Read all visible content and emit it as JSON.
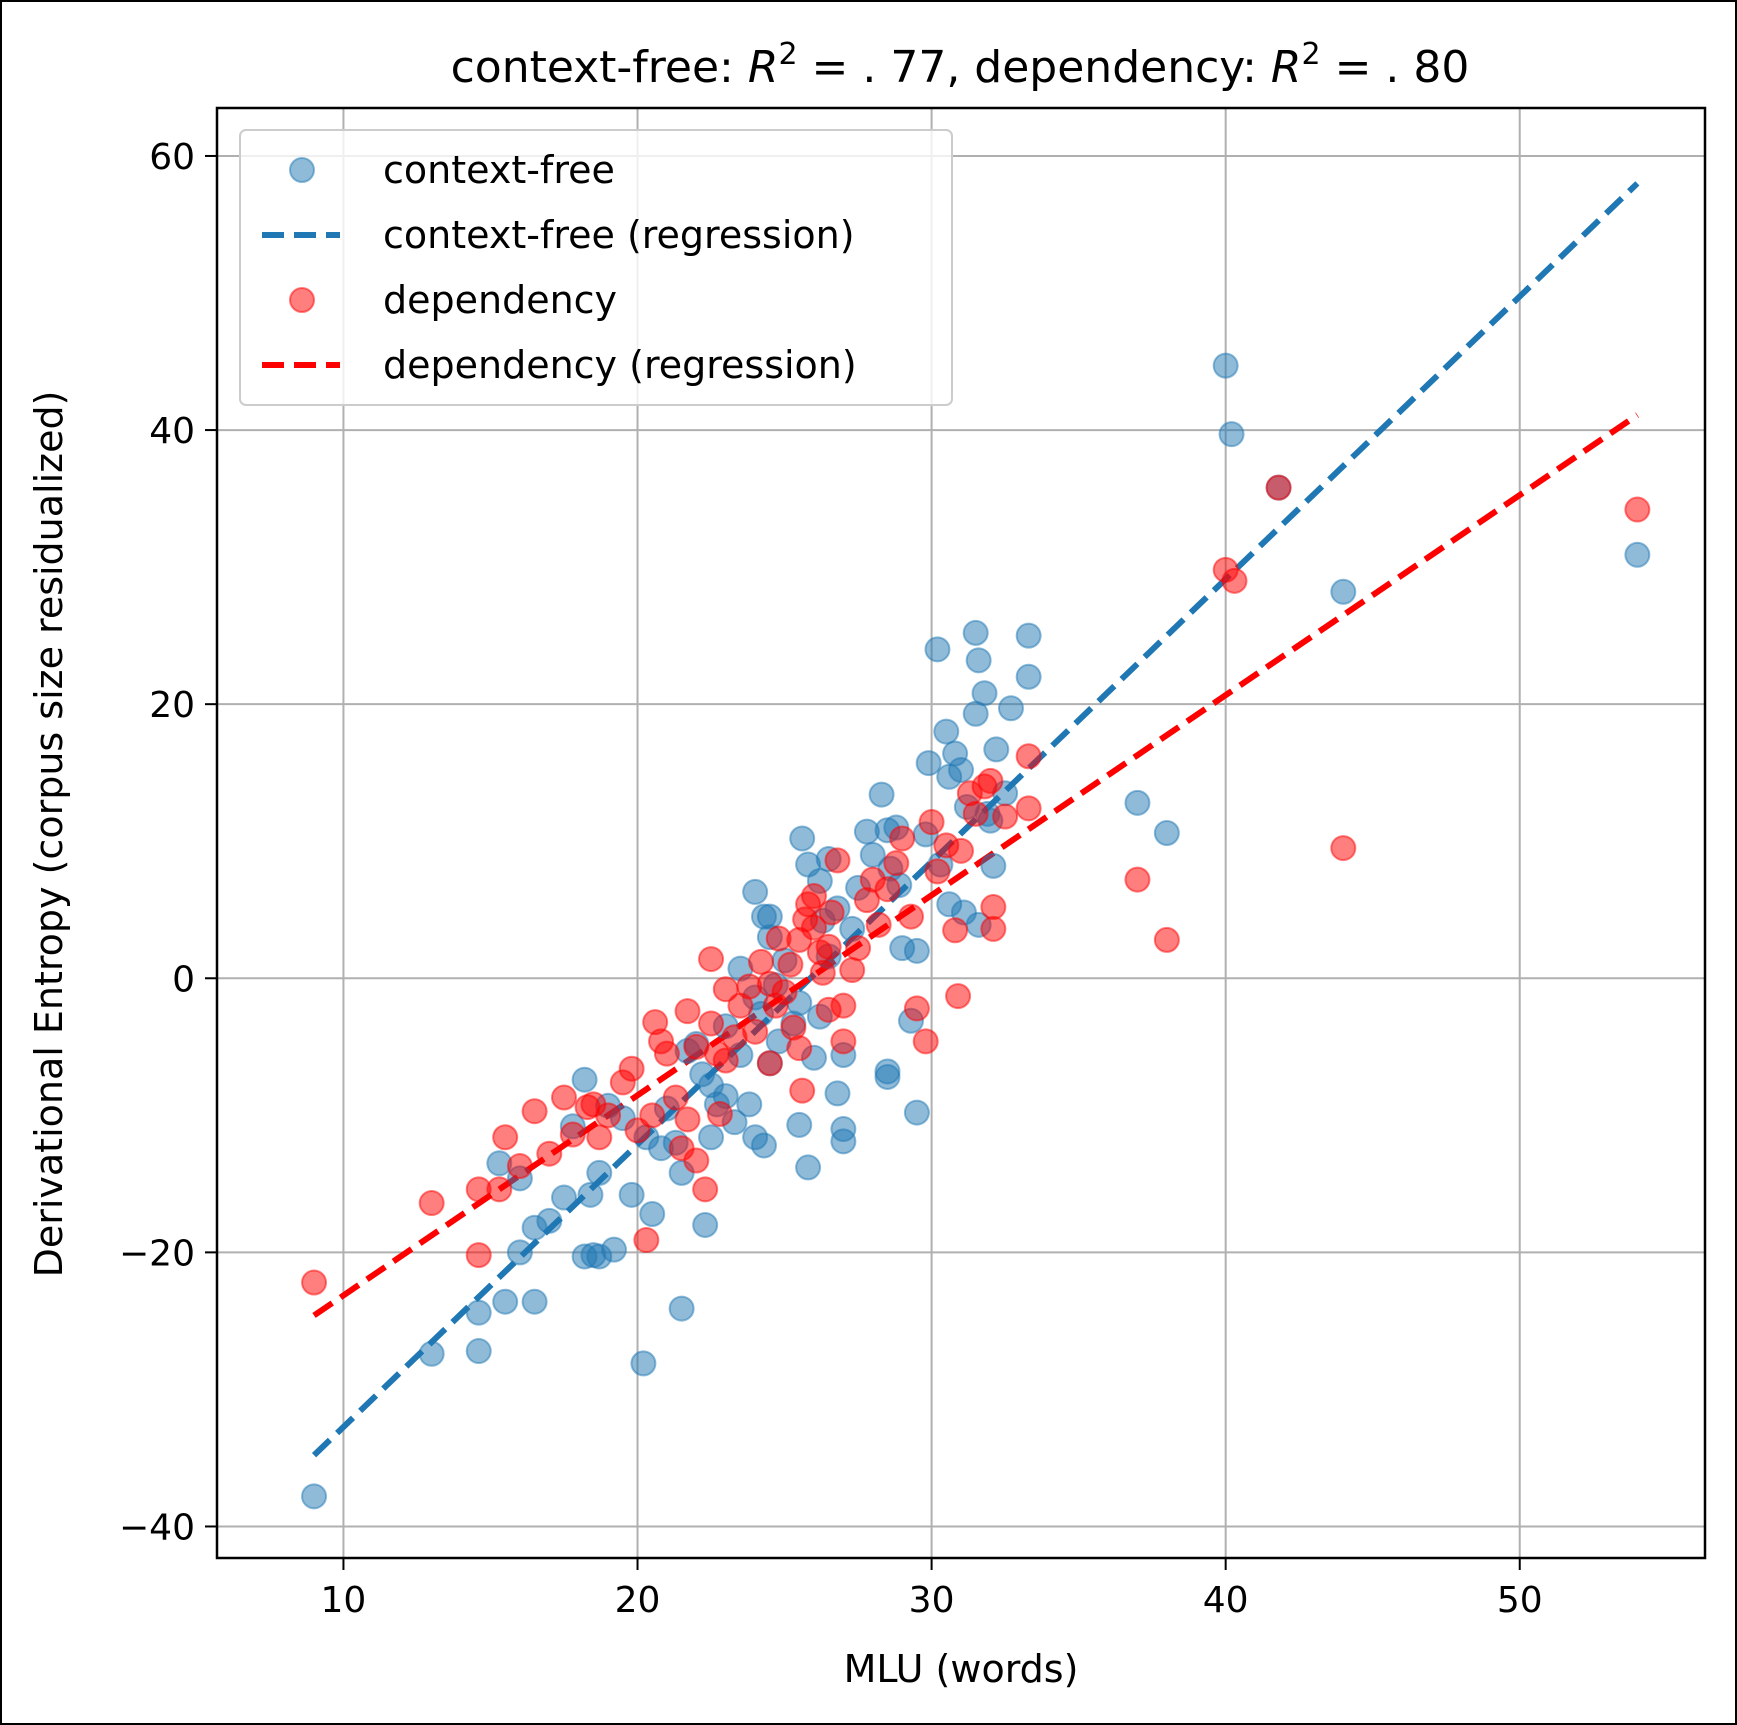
{
  "chart_data": {
    "type": "scatter",
    "title_parts": {
      "lead": "context-free: ",
      "r2_symbol": "R",
      "r2_power": "2",
      "cf_value": " = . 77, dependency: ",
      "dep_value": " = . 80"
    },
    "title": "context-free: R^2 = .77, dependency: R^2 = .80",
    "xlabel": "MLU (words)",
    "ylabel": "Derivational Entropy (corpus size residualized)",
    "xlim": [
      5.7,
      56.3
    ],
    "ylim": [
      -42.3,
      63.5
    ],
    "xticks": [
      10,
      20,
      30,
      40,
      50
    ],
    "yticks": [
      -40,
      -20,
      0,
      20,
      40,
      60
    ],
    "xtick_labels": [
      "10",
      "20",
      "30",
      "40",
      "50"
    ],
    "ytick_labels": [
      "−40",
      "−20",
      "0",
      "20",
      "40",
      "60"
    ],
    "grid": true,
    "legend_position": "top-left",
    "colors": {
      "context_free": "#1f77b4",
      "dependency": "#ff0000",
      "grid": "#b0b0b0"
    },
    "legend": [
      {
        "label": "context-free",
        "kind": "marker",
        "series": "context_free"
      },
      {
        "label": "context-free (regression)",
        "kind": "dashed-line",
        "series": "context_free"
      },
      {
        "label": "dependency",
        "kind": "marker",
        "series": "dependency"
      },
      {
        "label": "dependency (regression)",
        "kind": "dashed-line",
        "series": "dependency"
      }
    ],
    "regression": {
      "context_free": {
        "x": [
          9,
          54
        ],
        "y": [
          -34.8,
          58.0
        ]
      },
      "dependency": {
        "x": [
          9,
          54
        ],
        "y": [
          -24.6,
          41.1
        ]
      }
    },
    "series": [
      {
        "name": "context-free",
        "key": "context_free",
        "points": [
          [
            9.0,
            -37.8
          ],
          [
            13.0,
            -27.4
          ],
          [
            14.6,
            -27.2
          ],
          [
            14.6,
            -24.4
          ],
          [
            15.5,
            -23.6
          ],
          [
            16.5,
            -23.6
          ],
          [
            15.3,
            -13.5
          ],
          [
            16.0,
            -14.6
          ],
          [
            16.0,
            -20.0
          ],
          [
            16.5,
            -18.2
          ],
          [
            17.0,
            -17.7
          ],
          [
            17.5,
            -16.0
          ],
          [
            17.8,
            -10.8
          ],
          [
            18.2,
            -20.3
          ],
          [
            18.5,
            -20.2
          ],
          [
            18.7,
            -20.3
          ],
          [
            19.2,
            -19.8
          ],
          [
            18.4,
            -15.8
          ],
          [
            18.7,
            -14.2
          ],
          [
            18.2,
            -7.4
          ],
          [
            19.0,
            -9.3
          ],
          [
            19.5,
            -10.2
          ],
          [
            19.8,
            -15.8
          ],
          [
            20.2,
            -28.1
          ],
          [
            20.5,
            -17.2
          ],
          [
            21.5,
            -24.1
          ],
          [
            20.3,
            -11.6
          ],
          [
            20.8,
            -12.4
          ],
          [
            21.0,
            -9.5
          ],
          [
            21.5,
            -14.2
          ],
          [
            21.3,
            -12.0
          ],
          [
            21.7,
            -5.3
          ],
          [
            22.0,
            -4.8
          ],
          [
            22.2,
            -7.0
          ],
          [
            22.5,
            -7.8
          ],
          [
            22.3,
            -18.0
          ],
          [
            22.5,
            -11.6
          ],
          [
            22.7,
            -9.2
          ],
          [
            23.0,
            -3.5
          ],
          [
            23.0,
            -8.6
          ],
          [
            23.3,
            -10.5
          ],
          [
            23.5,
            -5.6
          ],
          [
            23.8,
            -9.2
          ],
          [
            24.0,
            -11.6
          ],
          [
            24.3,
            -12.2
          ],
          [
            24.5,
            -6.2
          ],
          [
            23.5,
            0.7
          ],
          [
            24.0,
            -1.4
          ],
          [
            24.2,
            -2.6
          ],
          [
            24.8,
            -4.6
          ],
          [
            24.5,
            3.0
          ],
          [
            24.7,
            -0.5
          ],
          [
            25.0,
            1.3
          ],
          [
            25.3,
            -3.3
          ],
          [
            25.5,
            -1.8
          ],
          [
            24.3,
            4.5
          ],
          [
            24.0,
            6.3
          ],
          [
            24.5,
            4.5
          ],
          [
            25.5,
            -10.7
          ],
          [
            25.8,
            -13.8
          ],
          [
            25.6,
            10.2
          ],
          [
            25.8,
            8.3
          ],
          [
            26.2,
            7.1
          ],
          [
            26.5,
            8.7
          ],
          [
            26.3,
            4.2
          ],
          [
            26.8,
            5.1
          ],
          [
            26.5,
            1.6
          ],
          [
            26.2,
            -2.8
          ],
          [
            26.0,
            -5.8
          ],
          [
            27.0,
            -5.6
          ],
          [
            26.8,
            -8.4
          ],
          [
            27.0,
            -11.0
          ],
          [
            27.0,
            -11.9
          ],
          [
            27.3,
            3.6
          ],
          [
            27.5,
            6.6
          ],
          [
            27.8,
            10.7
          ],
          [
            28.0,
            9.0
          ],
          [
            28.3,
            13.4
          ],
          [
            28.5,
            10.8
          ],
          [
            28.8,
            11.0
          ],
          [
            28.6,
            8.0
          ],
          [
            28.9,
            6.8
          ],
          [
            28.5,
            -6.8
          ],
          [
            28.5,
            -7.2
          ],
          [
            29.0,
            2.2
          ],
          [
            29.5,
            2.0
          ],
          [
            29.3,
            -3.1
          ],
          [
            29.5,
            -9.8
          ],
          [
            29.9,
            15.7
          ],
          [
            29.8,
            10.5
          ],
          [
            30.2,
            24.0
          ],
          [
            30.5,
            18.0
          ],
          [
            30.8,
            16.4
          ],
          [
            30.6,
            14.7
          ],
          [
            31.0,
            15.2
          ],
          [
            31.2,
            12.5
          ],
          [
            30.3,
            8.3
          ],
          [
            30.6,
            5.4
          ],
          [
            31.1,
            4.8
          ],
          [
            31.5,
            25.2
          ],
          [
            31.6,
            23.2
          ],
          [
            31.8,
            20.8
          ],
          [
            31.5,
            19.3
          ],
          [
            31.9,
            12.0
          ],
          [
            32.0,
            11.5
          ],
          [
            32.2,
            16.7
          ],
          [
            32.1,
            8.2
          ],
          [
            31.6,
            3.9
          ],
          [
            32.7,
            19.7
          ],
          [
            33.3,
            25.0
          ],
          [
            33.3,
            22.0
          ],
          [
            32.5,
            13.5
          ],
          [
            37.0,
            12.8
          ],
          [
            38.0,
            10.6
          ],
          [
            40.0,
            44.7
          ],
          [
            40.2,
            39.7
          ],
          [
            41.8,
            35.8
          ],
          [
            44.0,
            28.2
          ],
          [
            54.0,
            30.9
          ]
        ]
      },
      {
        "name": "dependency",
        "key": "dependency",
        "points": [
          [
            9.0,
            -22.2
          ],
          [
            13.0,
            -16.4
          ],
          [
            14.6,
            -20.2
          ],
          [
            14.6,
            -15.4
          ],
          [
            15.3,
            -15.4
          ],
          [
            15.5,
            -11.6
          ],
          [
            16.0,
            -13.7
          ],
          [
            16.5,
            -9.7
          ],
          [
            17.0,
            -12.8
          ],
          [
            17.5,
            -8.7
          ],
          [
            17.8,
            -11.4
          ],
          [
            18.3,
            -9.4
          ],
          [
            18.5,
            -9.2
          ],
          [
            18.7,
            -11.6
          ],
          [
            19.0,
            -10.0
          ],
          [
            19.5,
            -7.6
          ],
          [
            19.8,
            -6.6
          ],
          [
            20.0,
            -11.1
          ],
          [
            20.3,
            -19.1
          ],
          [
            20.5,
            -10.0
          ],
          [
            20.6,
            -3.2
          ],
          [
            20.8,
            -4.6
          ],
          [
            21.0,
            -5.5
          ],
          [
            21.3,
            -8.7
          ],
          [
            21.5,
            -12.4
          ],
          [
            21.7,
            -10.3
          ],
          [
            21.7,
            -2.4
          ],
          [
            22.0,
            -5.0
          ],
          [
            22.0,
            -13.3
          ],
          [
            22.3,
            -15.4
          ],
          [
            22.5,
            1.4
          ],
          [
            22.5,
            -3.3
          ],
          [
            22.7,
            -5.5
          ],
          [
            22.8,
            -9.9
          ],
          [
            23.0,
            -0.8
          ],
          [
            23.0,
            -6.0
          ],
          [
            23.3,
            -4.3
          ],
          [
            23.5,
            -2.0
          ],
          [
            23.8,
            -0.6
          ],
          [
            24.0,
            -3.9
          ],
          [
            24.2,
            1.2
          ],
          [
            24.5,
            -0.4
          ],
          [
            24.5,
            -6.2
          ],
          [
            24.7,
            -2.0
          ],
          [
            24.8,
            2.9
          ],
          [
            25.0,
            -1.0
          ],
          [
            25.2,
            1.0
          ],
          [
            25.3,
            -3.6
          ],
          [
            25.5,
            -5.1
          ],
          [
            25.6,
            -8.2
          ],
          [
            25.5,
            2.8
          ],
          [
            25.7,
            4.3
          ],
          [
            25.8,
            5.4
          ],
          [
            26.0,
            6.0
          ],
          [
            26.0,
            3.7
          ],
          [
            26.2,
            1.9
          ],
          [
            26.3,
            0.4
          ],
          [
            26.5,
            2.3
          ],
          [
            26.6,
            4.8
          ],
          [
            26.8,
            8.6
          ],
          [
            26.5,
            -2.3
          ],
          [
            27.0,
            -4.6
          ],
          [
            27.0,
            -2.0
          ],
          [
            27.3,
            0.6
          ],
          [
            27.5,
            2.2
          ],
          [
            27.8,
            5.7
          ],
          [
            28.0,
            7.2
          ],
          [
            28.2,
            3.9
          ],
          [
            28.5,
            6.5
          ],
          [
            28.8,
            8.4
          ],
          [
            29.0,
            10.2
          ],
          [
            29.3,
            4.5
          ],
          [
            29.5,
            -2.2
          ],
          [
            29.8,
            -4.6
          ],
          [
            30.0,
            11.4
          ],
          [
            30.2,
            7.8
          ],
          [
            30.5,
            9.7
          ],
          [
            30.8,
            3.5
          ],
          [
            30.9,
            -1.3
          ],
          [
            31.0,
            9.3
          ],
          [
            31.3,
            13.5
          ],
          [
            31.5,
            12.0
          ],
          [
            31.8,
            14.0
          ],
          [
            32.0,
            14.4
          ],
          [
            32.1,
            5.2
          ],
          [
            32.1,
            3.6
          ],
          [
            32.5,
            11.8
          ],
          [
            33.3,
            16.2
          ],
          [
            33.3,
            12.4
          ],
          [
            37.0,
            7.2
          ],
          [
            38.0,
            2.8
          ],
          [
            40.0,
            29.8
          ],
          [
            40.3,
            29.0
          ],
          [
            41.8,
            35.8
          ],
          [
            44.0,
            9.5
          ],
          [
            54.0,
            34.2
          ]
        ]
      }
    ]
  }
}
